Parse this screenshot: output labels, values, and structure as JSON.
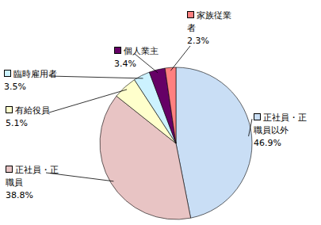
{
  "chart_data": {
    "type": "pie",
    "categories": [
      "正社員・正職員以外",
      "正社員・正職員",
      "有給役員",
      "臨時雇用者",
      "個人業主",
      "家族従業者"
    ],
    "values": [
      46.9,
      38.8,
      5.1,
      3.5,
      3.4,
      2.3
    ],
    "value_labels": [
      "46.9%",
      "38.8%",
      "5.1%",
      "3.5%",
      "3.4%",
      "2.3%"
    ],
    "colors": [
      "#c9def5",
      "#e8c4c4",
      "#ffffcc",
      "#ccf2ff",
      "#660066",
      "#ff8080"
    ],
    "data_labels": true
  }
}
